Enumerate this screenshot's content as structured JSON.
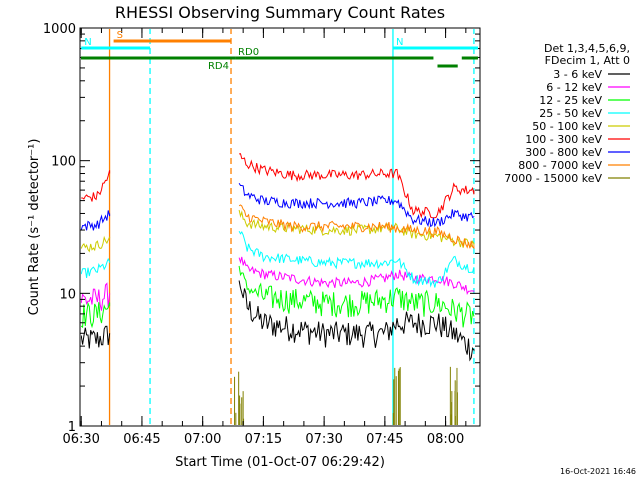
{
  "chart_data": {
    "type": "line",
    "title": "RHESSI Observing Summary Count Rates",
    "xlabel": "Start Time (01-Oct-07 06:29:42)",
    "ylabel": "Count Rate (s⁻¹ detector⁻¹)",
    "yscale": "log",
    "ylim": [
      1,
      1000
    ],
    "xlim": [
      "06:29:42",
      "08:08:30"
    ],
    "x_ticks": [
      "06:30",
      "06:45",
      "07:00",
      "07:15",
      "07:30",
      "07:45",
      "08:00"
    ],
    "y_ticks": [
      "1",
      "10",
      "100",
      "1000"
    ],
    "legend": {
      "header": [
        "Det 1,3,4,5,6,9,",
        "FDecim 1, Att 0"
      ],
      "placement": "right"
    },
    "series": [
      {
        "name": "3 - 6 keV",
        "color": "#000000",
        "x": [
          "06:30",
          "06:34",
          "06:37",
          "07:08",
          "07:09",
          "07:11",
          "07:15",
          "07:22",
          "07:30",
          "07:38",
          "07:45",
          "07:48",
          "07:52",
          "07:58",
          "08:02",
          "08:05",
          "08:07"
        ],
        "values": [
          4.5,
          4.5,
          5,
          0,
          12,
          8,
          6,
          5.5,
          5,
          5,
          5,
          6,
          6,
          6,
          5,
          4.2,
          3.8
        ]
      },
      {
        "name": "6 - 12 keV",
        "color": "#ff00ff",
        "x": [
          "06:30",
          "06:34",
          "06:37",
          "07:08",
          "07:09",
          "07:11",
          "07:15",
          "07:22",
          "07:30",
          "07:38",
          "07:45",
          "07:48",
          "07:52",
          "07:58",
          "08:02",
          "08:05",
          "08:07"
        ],
        "values": [
          9,
          9,
          10,
          0,
          19,
          15,
          14,
          13,
          12,
          12,
          13,
          14,
          13,
          13,
          12,
          11,
          10.5
        ]
      },
      {
        "name": "12 - 25 keV",
        "color": "#00ff00",
        "x": [
          "06:30",
          "06:34",
          "06:37",
          "07:08",
          "07:09",
          "07:11",
          "07:15",
          "07:22",
          "07:30",
          "07:38",
          "07:45",
          "07:48",
          "07:52",
          "07:58",
          "08:02",
          "08:05",
          "08:07"
        ],
        "values": [
          7,
          7,
          8,
          0,
          16,
          11,
          9.5,
          9,
          8.5,
          8.5,
          9,
          9.5,
          8.5,
          8.5,
          7.5,
          7,
          6.8
        ]
      },
      {
        "name": "25 - 50 keV",
        "color": "#00ffff",
        "x": [
          "06:30",
          "06:34",
          "06:37",
          "07:08",
          "07:09",
          "07:11",
          "07:15",
          "07:22",
          "07:30",
          "07:38",
          "07:45",
          "07:48",
          "07:52",
          "07:58",
          "08:02",
          "08:05",
          "08:07"
        ],
        "values": [
          14,
          15,
          17,
          0,
          30,
          22,
          19,
          18,
          17,
          17,
          17,
          18,
          13,
          12,
          18,
          16,
          15.5
        ]
      },
      {
        "name": "50 - 100 keV",
        "color": "#cccc00",
        "x": [
          "06:30",
          "06:34",
          "06:37",
          "07:08",
          "07:09",
          "07:11",
          "07:15",
          "07:22",
          "07:30",
          "07:38",
          "07:45",
          "07:48",
          "07:52",
          "07:58",
          "08:02",
          "08:05",
          "08:07"
        ],
        "values": [
          22,
          23,
          26,
          0,
          40,
          34,
          32,
          31,
          30,
          30,
          31,
          31,
          28,
          27,
          25,
          24,
          23
        ]
      },
      {
        "name": "100 - 300 keV",
        "color": "#ff0000",
        "x": [
          "06:30",
          "06:34",
          "06:37",
          "07:08",
          "07:09",
          "07:11",
          "07:15",
          "07:22",
          "07:30",
          "07:38",
          "07:45",
          "07:48",
          "07:52",
          "07:58",
          "08:02",
          "08:05",
          "08:07"
        ],
        "values": [
          52,
          54,
          80,
          0,
          110,
          95,
          85,
          78,
          78,
          78,
          80,
          80,
          42,
          40,
          62,
          60,
          60
        ]
      },
      {
        "name": "300 - 800 keV",
        "color": "#0000ff",
        "x": [
          "06:30",
          "06:34",
          "06:37",
          "07:08",
          "07:09",
          "07:11",
          "07:15",
          "07:22",
          "07:30",
          "07:38",
          "07:45",
          "07:48",
          "07:52",
          "07:58",
          "08:02",
          "08:05",
          "08:07"
        ],
        "values": [
          32,
          33,
          40,
          0,
          65,
          55,
          50,
          48,
          48,
          48,
          50,
          50,
          36,
          34,
          40,
          38,
          38
        ]
      },
      {
        "name": "800 - 7000 keV",
        "color": "#ff8000",
        "x": [
          "06:30",
          "06:34",
          "06:37",
          "07:08",
          "07:09",
          "07:11",
          "07:15",
          "07:22",
          "07:30",
          "07:38",
          "07:45",
          "07:48",
          "07:52",
          "07:58",
          "08:02",
          "08:05",
          "08:07"
        ],
        "values": [
          0,
          0,
          0,
          0,
          45,
          38,
          35,
          32,
          32,
          32,
          32,
          31,
          30,
          29,
          26,
          24,
          23
        ]
      },
      {
        "name": "7000 - 15000 keV",
        "color": "#808000",
        "x": [
          "06:30",
          "06:34",
          "06:37",
          "07:08",
          "07:09",
          "07:11",
          "07:15",
          "07:22",
          "07:30",
          "07:38",
          "07:45",
          "07:48",
          "07:52",
          "07:58",
          "08:02",
          "08:05",
          "08:07"
        ],
        "values": [
          0,
          0,
          0,
          0,
          2,
          0,
          0,
          0,
          0,
          0,
          0,
          2,
          0,
          0,
          2,
          0,
          0
        ]
      }
    ],
    "markers": [
      {
        "label": "S",
        "color": "#ff8000",
        "start": "06:38",
        "end": "07:07"
      },
      {
        "label": "N",
        "color": "#00ffff",
        "start": "06:30",
        "end": "06:47"
      },
      {
        "label": "N",
        "color": "#00ffff",
        "start": "07:47",
        "end": "08:08"
      },
      {
        "label": "RD4",
        "color": "#008000",
        "start": "07:07",
        "end": "07:08"
      },
      {
        "label": "RD0",
        "color": "#008000",
        "start": "07:08",
        "end": "07:57"
      }
    ],
    "vlines": [
      {
        "time": "06:37",
        "color": "#ff8000",
        "style": "solid"
      },
      {
        "time": "06:47",
        "color": "#00ffff",
        "style": "dashed"
      },
      {
        "time": "07:07",
        "color": "#ff8000",
        "style": "dashed"
      },
      {
        "time": "07:47",
        "color": "#00ffff",
        "style": "solid"
      },
      {
        "time": "08:07",
        "color": "#00ffff",
        "style": "dashed"
      }
    ],
    "footer_stamp": "16-Oct-2021 16:46"
  }
}
